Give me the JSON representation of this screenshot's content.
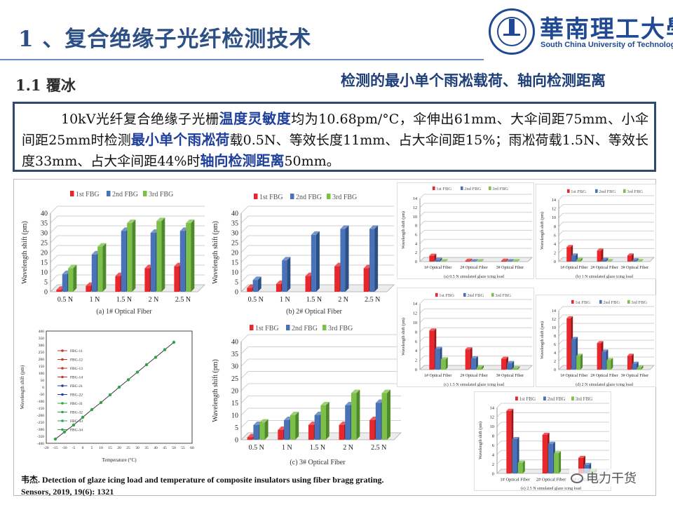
{
  "header": {
    "title": "1 、复合绝缘子光纤检测技术",
    "logo_cn": "華南理工大學",
    "logo_en": "South China University of Technology"
  },
  "section": {
    "label": "1.1 覆冰",
    "right_title": "检测的最小单个雨凇载荷、轴向检测距离"
  },
  "summary": {
    "seg1": "10kV光纤复合绝缘子光栅",
    "hl1": "温度灵敏度",
    "seg2": "均为10.68pm/°C，伞伸出61mm、大伞间距75mm、小伞间距25mm时检测",
    "hl2": "最小单个雨凇荷",
    "seg3": "载0.5N、等效长度11mm、占大伞间距15%；雨凇荷载1.5N、等效长度33mm、占大伞间距44%时",
    "hl3": "轴向检测距离",
    "seg4": "50mm。"
  },
  "colors": {
    "fbg1": "#e8262b",
    "fbg2": "#4a72b8",
    "fbg3": "#7cc04a",
    "accent": "#1e3f78"
  },
  "chart_data": [
    {
      "type": "bar",
      "title": "(a) 1# Optical Fiber",
      "categories": [
        "0.5 N",
        "1 N",
        "1.5 N",
        "2 N",
        "2.5 N"
      ],
      "series": [
        {
          "name": "1st FBG",
          "values": [
            1,
            3,
            8,
            12,
            13
          ]
        },
        {
          "name": "2nd FBG",
          "values": [
            9,
            19,
            31,
            30,
            31
          ]
        },
        {
          "name": "3rd FBG",
          "values": [
            12,
            23,
            35,
            36,
            35
          ]
        }
      ],
      "ylabel": "Wavelength shift (pm)",
      "yticks": [
        0,
        5,
        10,
        15,
        20,
        25,
        30,
        35,
        40
      ],
      "ylim": [
        0,
        40
      ]
    },
    {
      "type": "bar",
      "title": "(b) 2# Optical Fiber",
      "categories": [
        "0.5 N",
        "1 N",
        "1.5 N",
        "2 N",
        "2.5 N"
      ],
      "series": [
        {
          "name": "1st FBG",
          "values": [
            2,
            4,
            8,
            13,
            12
          ]
        },
        {
          "name": "2nd FBG",
          "values": [
            6,
            16,
            29,
            32,
            32
          ]
        },
        {
          "name": "3rd FBG",
          "values": [
            0,
            0,
            0,
            0,
            0
          ]
        }
      ],
      "ylabel": "Wavelength shift (pm)",
      "yticks": [
        0,
        5,
        10,
        15,
        20,
        25,
        30,
        35,
        40
      ],
      "ylim": [
        0,
        40
      ]
    },
    {
      "type": "bar",
      "title": "(c) 3# Optical Fiber",
      "categories": [
        "0.5 N",
        "1 N",
        "1.5 N",
        "2 N",
        "2.5 N"
      ],
      "series": [
        {
          "name": "1st FBG",
          "values": [
            1,
            4,
            6,
            6,
            8
          ]
        },
        {
          "name": "2nd FBG",
          "values": [
            6,
            8,
            10,
            14,
            15
          ]
        },
        {
          "name": "3rd FBG",
          "values": [
            7,
            10,
            14,
            19,
            19
          ]
        }
      ],
      "ylabel": "Wavelength shift (pm)",
      "yticks": [
        0,
        5,
        10,
        15,
        20,
        25,
        30,
        35,
        40
      ],
      "ylim": [
        0,
        40
      ]
    },
    {
      "type": "bar",
      "title": "(a) 0.5 N simulated glaze icing load",
      "categories": [
        "1# Optical Fiber",
        "2# Optical Fiber",
        "3# Optical Fiber"
      ],
      "series": [
        {
          "name": "1st FBG",
          "values": [
            1.3,
            0.2,
            0.2
          ]
        },
        {
          "name": "2nd FBG",
          "values": [
            0.4,
            0.1,
            0.1
          ]
        },
        {
          "name": "3rd FBG",
          "values": [
            0.1,
            0.1,
            0.1
          ]
        }
      ],
      "ylabel": "Wavelength shift (pm)",
      "yticks": [
        0,
        2,
        4,
        6,
        8,
        10,
        12,
        14
      ],
      "ylim": [
        0,
        14
      ]
    },
    {
      "type": "bar",
      "title": "(b) 1 N simulated glaze icing load",
      "categories": [
        "1# Optical Fiber",
        "2# Optical Fiber",
        "3# Optical Fiber"
      ],
      "series": [
        {
          "name": "1st FBG",
          "values": [
            3.3,
            2.5,
            1.4
          ]
        },
        {
          "name": "2nd FBG",
          "values": [
            1.4,
            0.4,
            0.3
          ]
        },
        {
          "name": "3rd FBG",
          "values": [
            0.4,
            0.1,
            0.1
          ]
        }
      ],
      "ylabel": "Wavelength shift (pm)",
      "yticks": [
        0,
        2,
        4,
        6,
        8,
        10,
        12,
        14
      ],
      "ylim": [
        0,
        14
      ]
    },
    {
      "type": "bar",
      "title": "(c) 1.5 N simulated glaze icing load",
      "categories": [
        "1# Optical Fiber",
        "2# Optical Fiber",
        "3# Optical Fiber"
      ],
      "series": [
        {
          "name": "1st FBG",
          "values": [
            8.3,
            4.3,
            2.3
          ]
        },
        {
          "name": "2nd FBG",
          "values": [
            4.4,
            2.4,
            1.4
          ]
        },
        {
          "name": "3rd FBG",
          "values": [
            2.2,
            0.5,
            0.3
          ]
        }
      ],
      "ylabel": "Wavelength shift (pm)",
      "yticks": [
        0,
        2,
        4,
        6,
        8,
        10,
        12,
        14
      ],
      "ylim": [
        0,
        14
      ]
    },
    {
      "type": "bar",
      "title": "(d) 2 N simulated glaze icing load",
      "categories": [
        "1# Optical Fiber",
        "2# Optical Fiber",
        "3# Optical Fiber"
      ],
      "series": [
        {
          "name": "1st FBG",
          "values": [
            12.2,
            6.3,
            3.3
          ]
        },
        {
          "name": "2nd FBG",
          "values": [
            7.3,
            4.3,
            1.4
          ]
        },
        {
          "name": "3rd FBG",
          "values": [
            3.3,
            2.3,
            0.5
          ]
        }
      ],
      "ylabel": "Wavelength shift (pm)",
      "yticks": [
        0,
        2,
        4,
        6,
        8,
        10,
        12,
        14
      ],
      "ylim": [
        0,
        14
      ]
    },
    {
      "type": "bar",
      "title": "(e) 2.5 N simulated glaze icing load",
      "categories": [
        "1# Optical Fiber",
        "2# Optical Fiber",
        "3# Optical Fiber"
      ],
      "series": [
        {
          "name": "1st FBG",
          "values": [
            13.3,
            8.2,
            3.3
          ]
        },
        {
          "name": "2nd FBG",
          "values": [
            7.3,
            6.3,
            1.8
          ]
        },
        {
          "name": "3rd FBG",
          "values": [
            2.3,
            4.3,
            0.6
          ]
        }
      ],
      "ylabel": "Wavelength shift (pm)",
      "yticks": [
        0,
        2,
        4,
        6,
        8,
        10,
        12,
        14
      ],
      "ylim": [
        0,
        14
      ]
    },
    {
      "type": "scatter",
      "title": "",
      "xlabel": "Temperature (°C)",
      "ylabel": "Wavelength shift (pm)",
      "xticks": [
        -20,
        -15,
        -10,
        -5,
        0,
        5,
        10,
        15,
        20,
        25,
        30,
        35,
        40,
        45,
        50,
        55,
        60
      ],
      "yticks": [
        -400,
        -350,
        -300,
        -250,
        -200,
        -150,
        -100,
        -50,
        0,
        50,
        100,
        150,
        200,
        250,
        300,
        350,
        400
      ],
      "xlim": [
        -20,
        60
      ],
      "ylim": [
        -400,
        400
      ],
      "x": [
        -15,
        -10,
        -5,
        0,
        5,
        10,
        15,
        20,
        25,
        30,
        35,
        40,
        45,
        50
      ],
      "y": [
        -370,
        -319,
        -270,
        -215,
        -160,
        -110,
        -55,
        0,
        53,
        107,
        160,
        213,
        267,
        320
      ],
      "legend": [
        "FBG-11",
        "FBG-12",
        "FBG-13",
        "FBG-14",
        "FBG-21",
        "FBG-22",
        "FBG-31",
        "FBG-32",
        "FBG-33",
        "FBG-34"
      ]
    }
  ],
  "citation": {
    "line1_author": "韦杰.",
    "line1_text": " Detection of glaze icing load and temperature of composite insulators using fiber bragg grating.",
    "line2": "Sensors, 2019, 19(6): 1321"
  },
  "watermark": "电力干货"
}
